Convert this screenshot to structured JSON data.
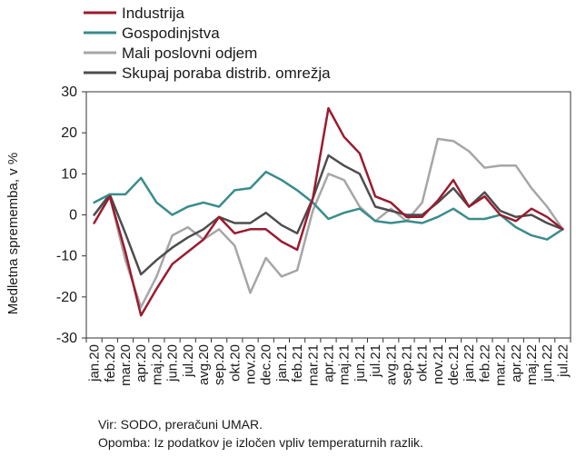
{
  "chart_data": {
    "type": "line",
    "title": "",
    "xlabel": "",
    "ylabel": "Medletna sprememba, v %",
    "ylim": [
      -30,
      30
    ],
    "yticks": [
      -30,
      -20,
      -10,
      0,
      10,
      20,
      30
    ],
    "grid": false,
    "legend_position": "top",
    "categories": [
      "jan.20",
      "feb.20",
      "mar.20",
      "apr.20",
      "maj.20",
      "jun.20",
      "jul.20",
      "avg.20",
      "sep.20",
      "okt.20",
      "nov.20",
      "dec.20",
      "jan.21",
      "feb.21",
      "mar.21",
      "apr.21",
      "maj.21",
      "jun.21",
      "jul.21",
      "avg.21",
      "sep.21",
      "okt.21",
      "nov.21",
      "dec.21",
      "jan.22",
      "feb.22",
      "mar.22",
      "apr.22",
      "maj.22",
      "jun.22",
      "jul.22"
    ],
    "series": [
      {
        "name": "Industrija",
        "color": "#9b1b2f",
        "values": [
          -2,
          4.5,
          -9,
          -24.5,
          -18,
          -12,
          -9,
          -6,
          -0.5,
          -4.5,
          -3.5,
          -3.5,
          -6.5,
          -8.5,
          4,
          26,
          19,
          15,
          4.5,
          3,
          -0.5,
          -0.5,
          3.5,
          8.5,
          2,
          4.5,
          0,
          -1.5,
          1.5,
          -0.5,
          -3.5
        ]
      },
      {
        "name": "Gospodinjstva",
        "color": "#3a8c8c",
        "values": [
          3,
          5,
          5,
          9,
          3,
          0,
          2,
          3,
          2,
          6,
          6.5,
          10.5,
          8.5,
          6,
          3,
          -1,
          0.5,
          1.5,
          -1.5,
          -2,
          -1.5,
          -2,
          -0.5,
          1.5,
          -1,
          -1,
          0,
          -3,
          -5,
          -6,
          -3.5
        ]
      },
      {
        "name": "Mali poslovni odjem",
        "color": "#a6a6a6",
        "values": [
          0,
          4.5,
          -11,
          -22.5,
          -15,
          -5,
          -3,
          -6,
          -3.5,
          -7.5,
          -19,
          -10.5,
          -15,
          -13.5,
          1,
          10,
          8.5,
          2,
          -1.5,
          1.5,
          -1.5,
          3,
          18.5,
          18,
          15.5,
          11.5,
          12,
          12,
          6.5,
          2,
          -3.5
        ]
      },
      {
        "name": "Skupaj poraba distrib. omrežja",
        "color": "#4d4d4d",
        "values": [
          0,
          5,
          -4.5,
          -14.5,
          -11,
          -8,
          -5.5,
          -3.5,
          -0.5,
          -2,
          -2,
          0.5,
          -2.5,
          -4.5,
          4,
          14.5,
          12,
          10,
          2,
          1,
          0,
          0,
          3,
          6.5,
          2,
          5.5,
          1,
          -0.5,
          0,
          -2,
          -3.5
        ]
      }
    ]
  },
  "notes": {
    "source": "Vir: SODO, preračuni UMAR.",
    "remark": "Opomba: Iz podatkov je izločen vpliv temperaturnih razlik."
  }
}
